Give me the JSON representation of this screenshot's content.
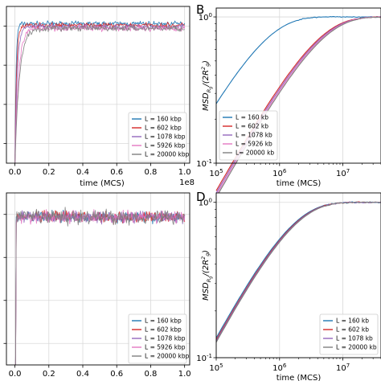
{
  "panel_letters": {
    "B": "B",
    "D": "D"
  },
  "chart_data": [
    {
      "id": "A",
      "type": "line",
      "xlabel": "time (MCS)",
      "x_offset_text": "1e8",
      "xlim": [
        -0.05,
        1.03
      ],
      "ylim": [
        0,
        1
      ],
      "x_ticks": [
        "0.0",
        "0.2",
        "0.4",
        "0.6",
        "0.8",
        "1.0"
      ],
      "grid": true,
      "legend_position": "lower-right",
      "series": [
        {
          "name": "L = 160 kbp",
          "color": "#1f77b4",
          "rise_to": 0.05,
          "plateau": 0.89,
          "noise": 0.025
        },
        {
          "name": "L = 602 kbp",
          "color": "#d62728",
          "rise_to": 0.1,
          "plateau": 0.88,
          "noise": 0.025
        },
        {
          "name": "L = 1078 kbp",
          "color": "#9467bd",
          "rise_to": 0.18,
          "plateau": 0.87,
          "noise": 0.025
        },
        {
          "name": "L = 5926 kbp",
          "color": "#e377c2",
          "rise_to": 0.35,
          "plateau": 0.86,
          "noise": 0.03
        },
        {
          "name": "L = 20000 kbp",
          "color": "#7f7f7f",
          "rise_to": 0.45,
          "plateau": 0.86,
          "noise": 0.03
        }
      ]
    },
    {
      "id": "B",
      "type": "line",
      "xlabel": "time (MCS)",
      "ylabel": "MSD_{R_g}/(2R_g^2)",
      "xscale": "log",
      "yscale": "log",
      "xlim": [
        100000,
        40000000
      ],
      "ylim": [
        0.1,
        1.15
      ],
      "x_ticks": [
        "10^5",
        "10^6",
        "10^7"
      ],
      "y_ticks": [
        "10^-1",
        "10^0"
      ],
      "grid": true,
      "legend_position": "lower-left",
      "series": [
        {
          "name": "L = 160 kb",
          "color": "#1f77b4",
          "t_half": 300000
        },
        {
          "name": "L = 602 kb",
          "color": "#d62728",
          "t_half": 2000000
        },
        {
          "name": "L = 1078 kb",
          "color": "#9467bd",
          "t_half": 2100000
        },
        {
          "name": "L = 5926 kb",
          "color": "#e377c2",
          "t_half": 2200000
        },
        {
          "name": "L= 20000 kb",
          "color": "#7f7f7f",
          "t_half": 2300000
        }
      ]
    },
    {
      "id": "C",
      "type": "line",
      "xlabel": "time (MCS)",
      "x_offset_text": "1e8",
      "xlim": [
        -0.05,
        1.03
      ],
      "ylim": [
        0,
        1
      ],
      "x_ticks": [
        "0.0",
        "0.2",
        "0.4",
        "0.6",
        "0.8",
        "1.0"
      ],
      "grid": true,
      "legend_position": "lower-right",
      "series": [
        {
          "name": "L = 160 kbp",
          "color": "#1f77b4",
          "plateau": 0.86,
          "noise": 0.04
        },
        {
          "name": "L = 602 kbp",
          "color": "#d62728",
          "plateau": 0.86,
          "noise": 0.045
        },
        {
          "name": "L = 1078 kbp",
          "color": "#9467bd",
          "plateau": 0.86,
          "noise": 0.045
        },
        {
          "name": "L = 5926 kbp",
          "color": "#e377c2",
          "plateau": 0.86,
          "noise": 0.05
        },
        {
          "name": "L = 20000 kbp",
          "color": "#7f7f7f",
          "plateau": 0.86,
          "noise": 0.06
        }
      ]
    },
    {
      "id": "D",
      "type": "line",
      "xlabel": "time (MCS)",
      "ylabel": "MSD_{R_g}/(2R_g^2)",
      "xscale": "log",
      "yscale": "log",
      "xlim": [
        100000,
        40000000
      ],
      "ylim": [
        0.1,
        1.15
      ],
      "x_ticks": [
        "10^5",
        "10^6",
        "10^7"
      ],
      "y_ticks": [
        "10^-1",
        "10^0"
      ],
      "grid": true,
      "legend_position": "lower-right",
      "series": [
        {
          "name": "L = 160 kb",
          "color": "#1f77b4",
          "t_half": 750000
        },
        {
          "name": "L = 602 kb",
          "color": "#d62728",
          "t_half": 780000
        },
        {
          "name": "L = 1078 kb",
          "color": "#9467bd",
          "t_half": 800000
        },
        {
          "name": "L = 20000 kb",
          "color": "#7f7f7f",
          "t_half": 820000
        }
      ]
    }
  ]
}
